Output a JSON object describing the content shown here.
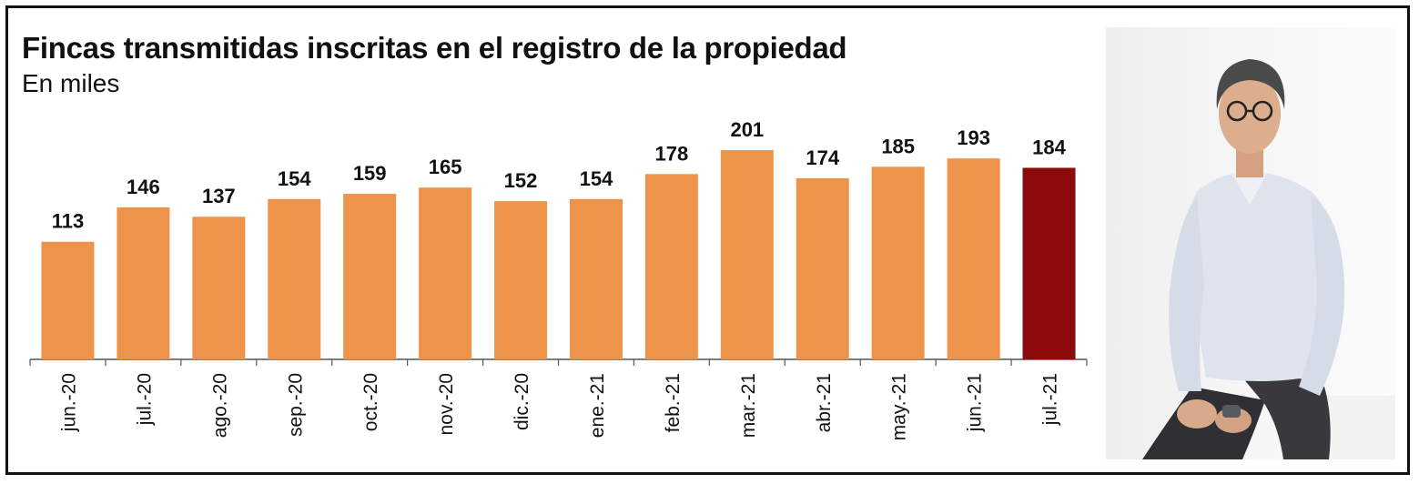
{
  "title": "Fincas transmitidas inscritas en el registro de la propiedad",
  "subtitle": "En miles",
  "colors": {
    "bar": "#EE934A",
    "highlight": "#8B0A0A",
    "axis": "#555555"
  },
  "chart_data": {
    "type": "bar",
    "categories": [
      "jun.-20",
      "jul.-20",
      "ago.-20",
      "sep.-20",
      "oct.-20",
      "nov.-20",
      "dic.-20",
      "ene.-21",
      "feb.-21",
      "mar.-21",
      "abr.-21",
      "may.-21",
      "jun.-21",
      "jul.-21"
    ],
    "values": [
      113,
      146,
      137,
      154,
      159,
      165,
      152,
      154,
      178,
      201,
      174,
      185,
      193,
      184
    ],
    "highlighted_category": "jul.-21",
    "title": "Fincas transmitidas inscritas en el registro de la propiedad",
    "subtitle": "En miles",
    "data_labels": true,
    "grid": false,
    "ylim": [
      0,
      201
    ]
  },
  "photo": {
    "alt": "portrait of a man in a light blue shirt with glasses, seated"
  }
}
